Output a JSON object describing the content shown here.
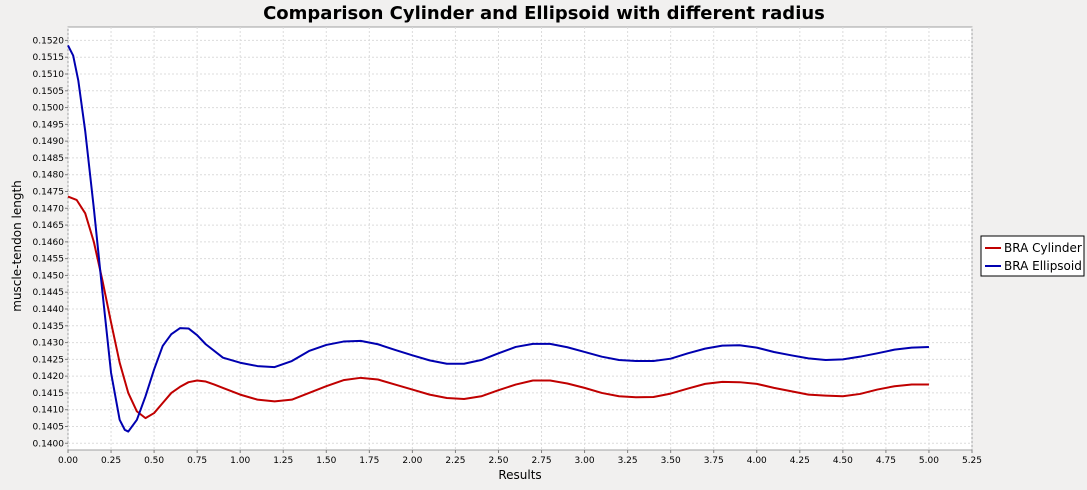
{
  "chart_data": {
    "type": "line",
    "title": "Comparison Cylinder and Ellipsoid with different radius",
    "xlabel": "Results",
    "ylabel": "muscle-tendon length",
    "xlim": [
      0,
      5.25
    ],
    "ylim": [
      0.1398,
      0.1524
    ],
    "x_ticks": [
      "0.00",
      "0.25",
      "0.50",
      "0.75",
      "1.00",
      "1.25",
      "1.50",
      "1.75",
      "2.00",
      "2.25",
      "2.50",
      "2.75",
      "3.00",
      "3.25",
      "3.50",
      "3.75",
      "4.00",
      "4.25",
      "4.50",
      "4.75",
      "5.00",
      "5.25"
    ],
    "y_ticks": [
      "0.1400",
      "0.1405",
      "0.1410",
      "0.1415",
      "0.1420",
      "0.1425",
      "0.1430",
      "0.1435",
      "0.1440",
      "0.1445",
      "0.1450",
      "0.1455",
      "0.1460",
      "0.1465",
      "0.1470",
      "0.1475",
      "0.1480",
      "0.1485",
      "0.1490",
      "0.1495",
      "0.1500",
      "0.1505",
      "0.1510",
      "0.1515",
      "0.1520"
    ],
    "grid": true,
    "legend_position": "right",
    "series": [
      {
        "name": "BRA Cylinder",
        "color": "#c00000",
        "points": [
          [
            0.0,
            0.14735
          ],
          [
            0.05,
            0.14725
          ],
          [
            0.1,
            0.14685
          ],
          [
            0.15,
            0.146
          ],
          [
            0.2,
            0.14485
          ],
          [
            0.25,
            0.1436
          ],
          [
            0.3,
            0.1424
          ],
          [
            0.35,
            0.1415
          ],
          [
            0.4,
            0.14095
          ],
          [
            0.45,
            0.14075
          ],
          [
            0.5,
            0.1409
          ],
          [
            0.55,
            0.1412
          ],
          [
            0.6,
            0.1415
          ],
          [
            0.65,
            0.14168
          ],
          [
            0.7,
            0.14182
          ],
          [
            0.75,
            0.14187
          ],
          [
            0.8,
            0.14184
          ],
          [
            0.85,
            0.14175
          ],
          [
            0.9,
            0.14165
          ],
          [
            1.0,
            0.14145
          ],
          [
            1.1,
            0.1413
          ],
          [
            1.2,
            0.14125
          ],
          [
            1.3,
            0.1413
          ],
          [
            1.4,
            0.1415
          ],
          [
            1.5,
            0.1417
          ],
          [
            1.6,
            0.14188
          ],
          [
            1.7,
            0.14195
          ],
          [
            1.8,
            0.1419
          ],
          [
            1.9,
            0.14175
          ],
          [
            2.0,
            0.1416
          ],
          [
            2.1,
            0.14145
          ],
          [
            2.2,
            0.14135
          ],
          [
            2.3,
            0.14132
          ],
          [
            2.4,
            0.1414
          ],
          [
            2.5,
            0.14158
          ],
          [
            2.6,
            0.14175
          ],
          [
            2.7,
            0.14187
          ],
          [
            2.8,
            0.14187
          ],
          [
            2.9,
            0.14178
          ],
          [
            3.0,
            0.14165
          ],
          [
            3.1,
            0.1415
          ],
          [
            3.2,
            0.1414
          ],
          [
            3.3,
            0.14137
          ],
          [
            3.4,
            0.14138
          ],
          [
            3.5,
            0.14148
          ],
          [
            3.6,
            0.14163
          ],
          [
            3.7,
            0.14177
          ],
          [
            3.8,
            0.14183
          ],
          [
            3.9,
            0.14182
          ],
          [
            4.0,
            0.14177
          ],
          [
            4.1,
            0.14165
          ],
          [
            4.2,
            0.14155
          ],
          [
            4.3,
            0.14145
          ],
          [
            4.4,
            0.14142
          ],
          [
            4.5,
            0.1414
          ],
          [
            4.6,
            0.14147
          ],
          [
            4.7,
            0.1416
          ],
          [
            4.8,
            0.1417
          ],
          [
            4.9,
            0.14175
          ],
          [
            5.0,
            0.14175
          ]
        ]
      },
      {
        "name": "BRA Ellipsoid",
        "color": "#0000b0",
        "points": [
          [
            0.0,
            0.15185
          ],
          [
            0.03,
            0.15155
          ],
          [
            0.06,
            0.1508
          ],
          [
            0.1,
            0.1493
          ],
          [
            0.15,
            0.147
          ],
          [
            0.2,
            0.1445
          ],
          [
            0.25,
            0.1421
          ],
          [
            0.3,
            0.1407
          ],
          [
            0.33,
            0.1404
          ],
          [
            0.35,
            0.14035
          ],
          [
            0.4,
            0.1407
          ],
          [
            0.45,
            0.1414
          ],
          [
            0.5,
            0.1422
          ],
          [
            0.55,
            0.1429
          ],
          [
            0.6,
            0.14325
          ],
          [
            0.65,
            0.14343
          ],
          [
            0.7,
            0.14342
          ],
          [
            0.75,
            0.14322
          ],
          [
            0.8,
            0.14295
          ],
          [
            0.9,
            0.14255
          ],
          [
            1.0,
            0.1424
          ],
          [
            1.1,
            0.1423
          ],
          [
            1.2,
            0.14227
          ],
          [
            1.3,
            0.14245
          ],
          [
            1.4,
            0.14275
          ],
          [
            1.5,
            0.14293
          ],
          [
            1.6,
            0.14303
          ],
          [
            1.7,
            0.14305
          ],
          [
            1.8,
            0.14295
          ],
          [
            1.9,
            0.14278
          ],
          [
            2.0,
            0.14262
          ],
          [
            2.1,
            0.14247
          ],
          [
            2.2,
            0.14237
          ],
          [
            2.3,
            0.14237
          ],
          [
            2.4,
            0.14248
          ],
          [
            2.5,
            0.14268
          ],
          [
            2.6,
            0.14287
          ],
          [
            2.7,
            0.14296
          ],
          [
            2.8,
            0.14296
          ],
          [
            2.9,
            0.14286
          ],
          [
            3.0,
            0.14272
          ],
          [
            3.1,
            0.14258
          ],
          [
            3.2,
            0.14248
          ],
          [
            3.3,
            0.14245
          ],
          [
            3.4,
            0.14245
          ],
          [
            3.5,
            0.14252
          ],
          [
            3.6,
            0.14268
          ],
          [
            3.7,
            0.14282
          ],
          [
            3.8,
            0.14291
          ],
          [
            3.9,
            0.14292
          ],
          [
            4.0,
            0.14285
          ],
          [
            4.1,
            0.14272
          ],
          [
            4.2,
            0.14262
          ],
          [
            4.3,
            0.14253
          ],
          [
            4.4,
            0.14248
          ],
          [
            4.5,
            0.1425
          ],
          [
            4.6,
            0.14258
          ],
          [
            4.7,
            0.14268
          ],
          [
            4.8,
            0.14279
          ],
          [
            4.9,
            0.14285
          ],
          [
            5.0,
            0.14287
          ]
        ]
      }
    ]
  }
}
